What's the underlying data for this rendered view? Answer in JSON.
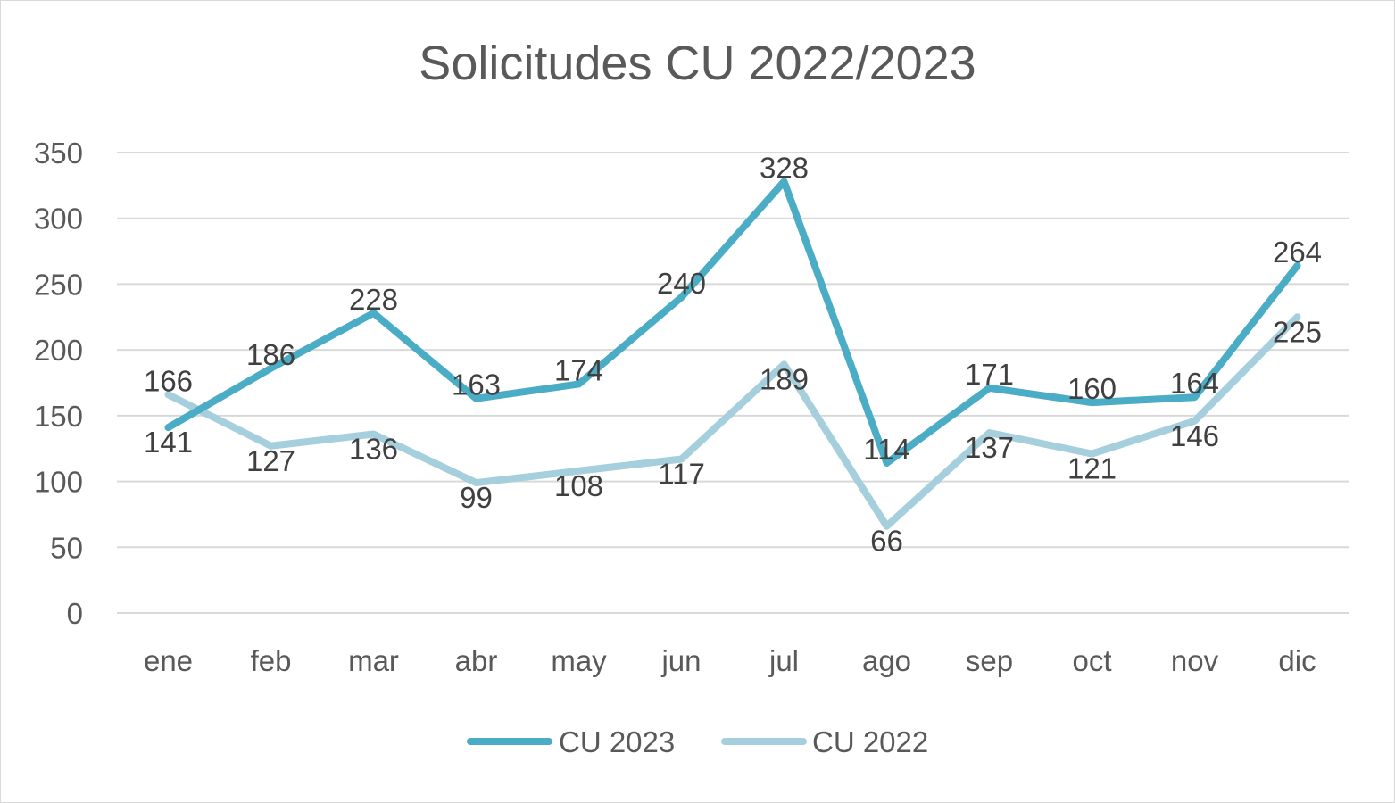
{
  "chart_data": {
    "type": "line",
    "title": "Solicitudes CU 2022/2023",
    "xlabel": "",
    "ylabel": "",
    "categories": [
      "ene",
      "feb",
      "mar",
      "abr",
      "may",
      "jun",
      "jul",
      "ago",
      "sep",
      "oct",
      "nov",
      "dic"
    ],
    "ylim": [
      0,
      350
    ],
    "yticks": [
      "0",
      "50",
      "100",
      "150",
      "200",
      "250",
      "300",
      "350"
    ],
    "grid": "horizontal",
    "legend_position": "bottom",
    "series": [
      {
        "name": "CU 2023",
        "color": "#4bacc6",
        "values": [
          141,
          186,
          228,
          163,
          174,
          240,
          328,
          114,
          171,
          160,
          164,
          264
        ]
      },
      {
        "name": "CU 2022",
        "color": "#a5cfdd",
        "values": [
          166,
          127,
          136,
          99,
          108,
          117,
          189,
          66,
          137,
          121,
          146,
          225
        ]
      }
    ]
  }
}
